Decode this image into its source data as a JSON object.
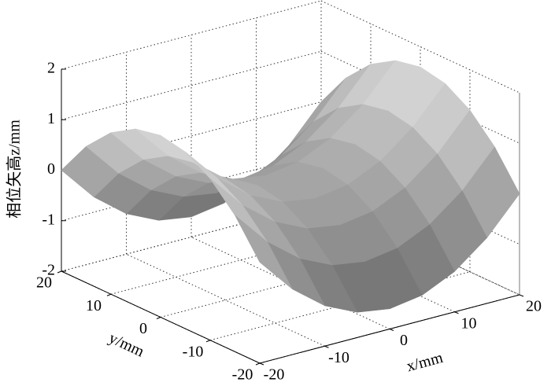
{
  "chart_data": {
    "type": "surface",
    "x": [
      -20,
      -15,
      -10,
      -5,
      0,
      5,
      10,
      15,
      20
    ],
    "y": [
      -20,
      -15,
      -10,
      -5,
      0,
      5,
      10,
      15,
      20
    ],
    "z": [
      [
        0,
        -0.7,
        -1.2,
        -1.5,
        -1.6,
        -1.5,
        -1.2,
        -0.7,
        0
      ],
      [
        0.7,
        0,
        -0.5,
        -0.8,
        -0.9,
        -0.8,
        -0.5,
        0,
        0.7
      ],
      [
        1.2,
        0.5,
        0,
        -0.3,
        -0.4,
        -0.3,
        0,
        0.5,
        1.2
      ],
      [
        1.5,
        0.8,
        0.3,
        0,
        -0.1,
        0,
        0.3,
        0.8,
        1.5
      ],
      [
        1.6,
        0.9,
        0.4,
        0.1,
        0,
        0.1,
        0.4,
        0.9,
        1.6
      ],
      [
        1.5,
        0.8,
        0.3,
        0,
        -0.1,
        0,
        0.3,
        0.8,
        1.5
      ],
      [
        1.2,
        0.5,
        0,
        -0.3,
        -0.4,
        -0.3,
        0,
        0.5,
        1.2
      ],
      [
        0.7,
        0,
        -0.5,
        -0.8,
        -0.9,
        -0.8,
        -0.5,
        0,
        0.7
      ],
      [
        0,
        -0.7,
        -1.2,
        -1.5,
        -1.6,
        -1.5,
        -1.2,
        -0.7,
        0
      ]
    ],
    "xlim": [
      -20,
      20
    ],
    "ylim": [
      -20,
      20
    ],
    "zlim": [
      -2,
      2
    ],
    "xticks": [
      -20,
      -10,
      0,
      10,
      20
    ],
    "yticks": [
      -20,
      -10,
      0,
      10,
      20
    ],
    "zticks": [
      -2,
      -1,
      0,
      1,
      2
    ],
    "xlabel": "x/mm",
    "ylabel": "y/mm",
    "zlabel": "相位矢高z/mm",
    "grid": true
  }
}
